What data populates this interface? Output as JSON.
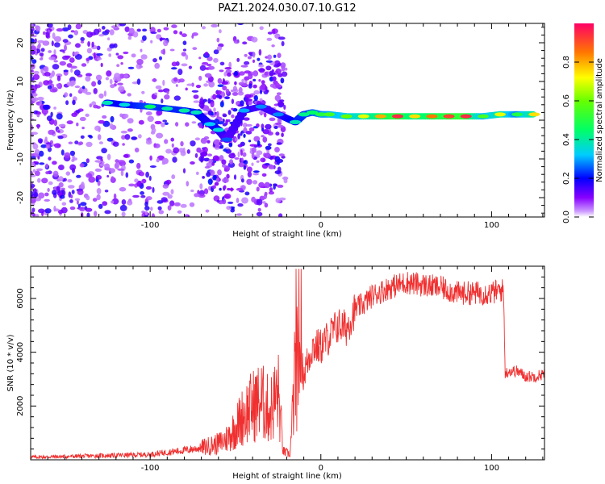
{
  "title": "PAZ1.2024.030.07.10.G12",
  "chart_data": [
    {
      "type": "heatmap",
      "xlabel": "Height of straight line (km)",
      "ylabel": "Frequency (Hz)",
      "xlim": [
        -170,
        131
      ],
      "ylim": [
        -25,
        25
      ],
      "xticks": [
        -100,
        0,
        100
      ],
      "yticks": [
        -20,
        -10,
        0,
        10,
        20
      ],
      "colorbar": {
        "label": "Normalized spectral amplitude",
        "ticks": [
          "0.0",
          "0.2",
          "0.4",
          "0.6",
          "0.8"
        ],
        "range": [
          0,
          1
        ]
      },
      "ridge": [
        {
          "x": -125,
          "y": 4.5,
          "a": 0.38
        },
        {
          "x": -115,
          "y": 4.0,
          "a": 0.35
        },
        {
          "x": -100,
          "y": 3.5,
          "a": 0.45
        },
        {
          "x": -90,
          "y": 3.0,
          "a": 0.4
        },
        {
          "x": -80,
          "y": 2.5,
          "a": 0.4
        },
        {
          "x": -73,
          "y": 2.0,
          "a": 0.38
        },
        {
          "x": -65,
          "y": -1.0,
          "a": 0.32
        },
        {
          "x": -60,
          "y": -2.5,
          "a": 0.35
        },
        {
          "x": -55,
          "y": -5.0,
          "a": 0.25
        },
        {
          "x": -45,
          "y": 2.5,
          "a": 0.3
        },
        {
          "x": -35,
          "y": 3.5,
          "a": 0.28
        },
        {
          "x": -25,
          "y": 1.5,
          "a": 0.28
        },
        {
          "x": -15,
          "y": -0.5,
          "a": 0.38
        },
        {
          "x": -10,
          "y": 1.5,
          "a": 0.42
        },
        {
          "x": -5,
          "y": 2.0,
          "a": 0.45
        },
        {
          "x": 0,
          "y": 1.5,
          "a": 0.5
        },
        {
          "x": 5,
          "y": 1.5,
          "a": 0.55
        },
        {
          "x": 15,
          "y": 1.0,
          "a": 0.6
        },
        {
          "x": 25,
          "y": 1.0,
          "a": 0.7
        },
        {
          "x": 35,
          "y": 1.0,
          "a": 0.8
        },
        {
          "x": 45,
          "y": 1.0,
          "a": 0.95
        },
        {
          "x": 55,
          "y": 1.0,
          "a": 0.75
        },
        {
          "x": 65,
          "y": 1.0,
          "a": 0.85
        },
        {
          "x": 75,
          "y": 1.0,
          "a": 0.92
        },
        {
          "x": 85,
          "y": 1.0,
          "a": 0.95
        },
        {
          "x": 95,
          "y": 1.0,
          "a": 0.55
        },
        {
          "x": 105,
          "y": 1.5,
          "a": 0.7
        },
        {
          "x": 115,
          "y": 1.5,
          "a": 0.5
        },
        {
          "x": 125,
          "y": 1.5,
          "a": 0.75
        }
      ]
    },
    {
      "type": "line",
      "xlabel": "Height of straight line (km)",
      "ylabel": "SNR (10 * v/v)",
      "xlim": [
        -170,
        131
      ],
      "ylim": [
        0,
        7200
      ],
      "xticks": [
        -100,
        0,
        100
      ],
      "yticks": [
        2000,
        4000,
        6000
      ],
      "color": "#f03030",
      "series": [
        {
          "x": [
            -170,
            -150,
            -130,
            -110,
            -100,
            -90,
            -80,
            -70,
            -60,
            -55,
            -50,
            -45,
            -40,
            -35,
            -30,
            -25,
            -22,
            -18,
            -15,
            -12,
            -10,
            -5,
            0,
            5,
            10,
            15,
            20,
            25,
            30,
            40,
            50,
            60,
            70,
            80,
            90,
            100,
            105,
            107,
            108,
            110,
            115,
            120,
            125,
            131
          ],
          "y": [
            100,
            120,
            150,
            180,
            200,
            280,
            350,
            450,
            600,
            800,
            1200,
            1700,
            2000,
            2200,
            1800,
            2500,
            300,
            200,
            3300,
            3600,
            3200,
            4200,
            4200,
            4600,
            5000,
            4900,
            5600,
            5800,
            6100,
            6400,
            6600,
            6500,
            6400,
            6200,
            6200,
            6200,
            6300,
            6300,
            3200,
            3300,
            3300,
            3100,
            3100,
            3200
          ]
        }
      ]
    }
  ]
}
